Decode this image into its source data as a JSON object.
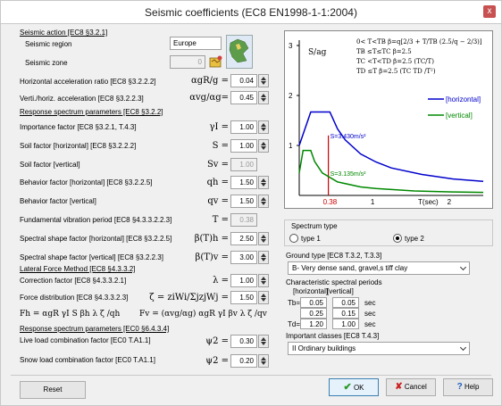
{
  "window": {
    "title": "Seismic coefficients (EC8 EN1998-1-1:2004)",
    "close": "x"
  },
  "seismic_action": {
    "section": "Seismic action [EC8 §3.2.1]",
    "region_label": "Seismic region",
    "region_value": "Europe",
    "zone_label": "Seismic zone",
    "zone_value": "0",
    "agr_label": "Horizontal acceleration ratio [EC8 §3.2.2.2]",
    "agr_sym": "αgR/g =",
    "agr_value": "0.04",
    "avg_label": "Verti./horiz. acceleration [EC8 §3.2.2.3]",
    "avg_sym": "αvg/αg=",
    "avg_value": "0.45"
  },
  "response": {
    "section": "Response spectrum parameters [EC8 §3.2.2]",
    "rows": [
      {
        "label": "Importance factor [EC8 §3.2.1, T.4.3]",
        "sym": "γI =",
        "value": "1.00",
        "spin": true
      },
      {
        "label": "Soil factor [horizontal] [EC8 §3.2.2.2]",
        "sym": "S =",
        "value": "1.00",
        "spin": true
      },
      {
        "label": "Soil factor [vertical]",
        "sym": "Sv =",
        "value": "1.00",
        "spin": false
      },
      {
        "label": "Behavior factor [horizontal] [EC8 §3.2.2.5]",
        "sym": "qh =",
        "value": "1.50",
        "spin": true
      },
      {
        "label": "Behavior factor [vertical]",
        "sym": "qv =",
        "value": "1.50",
        "spin": true
      },
      {
        "label": "Fundamental vibration period [EC8 §4.3.3.2.2.3]",
        "sym": "T =",
        "value": "0.38",
        "spin": false
      },
      {
        "label": "Spectral shape factor [horizontal] [EC8 §3.2.2.5]",
        "sym": "β(T)h =",
        "value": "2.50",
        "spin": true
      },
      {
        "label": "Spectral shape factor [vertical] [EC8 §3.2.2.3]",
        "sym": "β(T)v =",
        "value": "3.00",
        "spin": true
      }
    ]
  },
  "lateral": {
    "section": "Lateral Force Method [EC8 §4.3.3.2]",
    "correction_label": "Correction factor [EC8 §4.3.3.2.1]",
    "correction_sym": "λ =",
    "correction_value": "1.00",
    "distribution_label": "Force distribution [EC8 §4.3.3.2.3]",
    "distribution_sym": "ζ = ziWi/ΣjzjWj =",
    "distribution_value": "1.50",
    "fh_formula": "Fh = αgR γI S βh λ ζ /qh",
    "fv_formula": "Fv = (αvg/αg) αgR γI βv λ ζ /qv"
  },
  "response_combination": {
    "section": "Response spectrum parameters [EC0 §6.4.3.4]",
    "live_label": "Live load combination factor [EC0 T.A1.1]",
    "live_sym": "ψ2 =",
    "live_value": "0.30",
    "snow_label": "Snow load combination factor [EC0 T.A1.1]",
    "snow_sym": "ψ2 =",
    "snow_value": "0.20"
  },
  "chart_data": {
    "type": "line",
    "ylabel": "S/ag",
    "xlabel": "T(sec)",
    "xlim": [
      0,
      2.4
    ],
    "ylim": [
      0,
      3
    ],
    "y_ticks": [
      "3",
      "2",
      "1"
    ],
    "x_ticks": [
      "0.38",
      "1",
      "2"
    ],
    "formulas": [
      "0< T<TB   β=q[2/3 + T/TB (2.5/q − 2/3)]",
      "TB ≤T≤TC   β=2.5",
      "TC <T<TD   β=2.5 (TC/T)",
      "TD ≤T      β=2.5 (TC TD /T²)"
    ],
    "series": [
      {
        "name": "[horizontal]",
        "color": "#0000cc",
        "x": [
          0,
          0.15,
          0.4,
          0.5,
          0.6,
          0.8,
          1.0,
          1.2,
          1.6,
          2.0,
          2.4
        ],
        "y": [
          1.0,
          1.67,
          1.67,
          1.33,
          1.11,
          0.83,
          0.67,
          0.55,
          0.42,
          0.33,
          0.28
        ]
      },
      {
        "name": "[vertical]",
        "color": "#008800",
        "x": [
          0,
          0.05,
          0.15,
          0.2,
          0.3,
          0.5,
          0.8,
          1.0,
          1.5,
          2.0,
          2.4
        ],
        "y": [
          0.45,
          0.9,
          0.9,
          0.68,
          0.45,
          0.27,
          0.17,
          0.14,
          0.09,
          0.07,
          0.06
        ]
      }
    ],
    "marker_x": 0.38,
    "annotations": [
      "S=3.430m/s²",
      "S=3.135m/s²"
    ]
  },
  "spectrum": {
    "title": "Spectrum type",
    "type1": "type 1",
    "type2": "type 2",
    "selected": "type 2"
  },
  "ground": {
    "label": "Ground type [EC8 T.3.2, T.3.3]",
    "value": "B- Very dense sand, gravel,s tiff clay"
  },
  "periods": {
    "label": "Characteristic spectral periods",
    "col_h": "[horizontal]",
    "col_v": "[vertical]",
    "rows": [
      {
        "name": "Tb=",
        "h": "0.05",
        "v": "0.05",
        "unit": "sec"
      },
      {
        "name": "",
        "h": "0.25",
        "v": "0.15",
        "unit": "sec"
      },
      {
        "name": "Td=",
        "h": "1.20",
        "v": "1.00",
        "unit": "sec"
      }
    ]
  },
  "importance": {
    "label": "Important classes [EC8 T.4.3]",
    "value": "II Ordinary buildings"
  },
  "buttons": {
    "reset": "Reset",
    "ok": "OK",
    "cancel": "Cancel",
    "help": "Help"
  },
  "colors": {
    "horizontal": "#0000cc",
    "vertical": "#008800",
    "marker": "#cc0000"
  }
}
